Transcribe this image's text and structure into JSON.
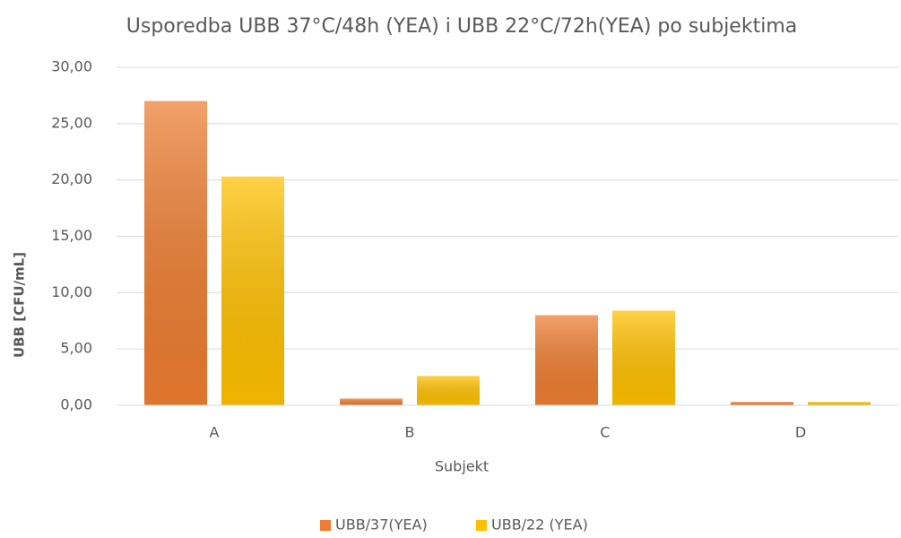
{
  "chart_data": {
    "type": "bar",
    "title": "Usporedba UBB 37°C/48h (YEA) i UBB 22°C/72h(YEA) po subjektima",
    "x_label": "Subjekt",
    "y_label": "UBB [CFU/mL]",
    "categories": [
      "A",
      "B",
      "C",
      "D"
    ],
    "series": [
      {
        "name": "UBB/37(YEA)",
        "color": "#ed7d31",
        "values": [
          27.0,
          0.6,
          8.0,
          0.3
        ]
      },
      {
        "name": "UBB/22 (YEA)",
        "color": "#ffc000",
        "values": [
          20.3,
          2.6,
          8.4,
          0.3
        ]
      }
    ],
    "ylim": [
      0,
      30
    ],
    "yticks": [
      {
        "value": 0,
        "label": "0,00"
      },
      {
        "value": 5,
        "label": "5,00"
      },
      {
        "value": 10,
        "label": "10,00"
      },
      {
        "value": 15,
        "label": "15,00"
      },
      {
        "value": 20,
        "label": "20,00"
      },
      {
        "value": 25,
        "label": "25,00"
      },
      {
        "value": 30,
        "label": "30,00"
      }
    ],
    "grid": true,
    "legend": "bottom"
  }
}
